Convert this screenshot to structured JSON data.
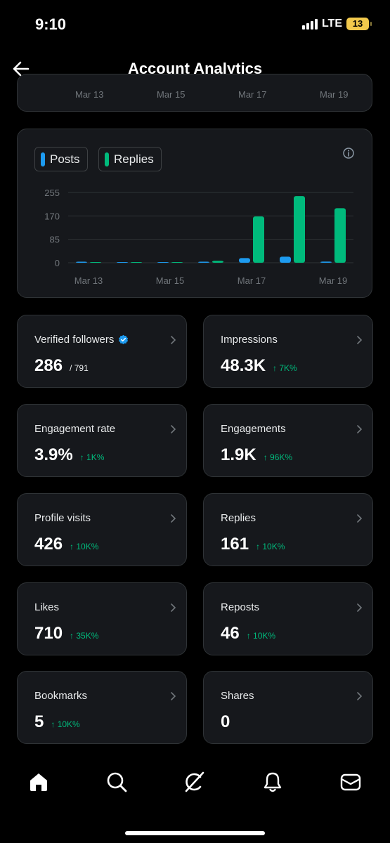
{
  "status_bar": {
    "time": "9:10",
    "network": "LTE",
    "battery": "13"
  },
  "header": {
    "title": "Account Analytics"
  },
  "top_chart": {
    "x_ticks": [
      "Mar 13",
      "Mar 15",
      "Mar 17",
      "Mar 19"
    ]
  },
  "legend": {
    "posts_label": "Posts",
    "replies_label": "Replies"
  },
  "colors": {
    "posts": "#1d9bf0",
    "replies": "#00ba7c",
    "delta_up": "#00ba7c",
    "card_bg": "#16181c",
    "border": "#2f3336"
  },
  "chart_data": {
    "type": "bar",
    "categories": [
      "Mar 13",
      "Mar 14",
      "Mar 15",
      "Mar 16",
      "Mar 17",
      "Mar 18",
      "Mar 19"
    ],
    "x_ticks": [
      "Mar 13",
      "Mar 15",
      "Mar 17",
      "Mar 19"
    ],
    "y_ticks": [
      "255",
      "170",
      "85",
      "0"
    ],
    "ylim": [
      0,
      255
    ],
    "series": [
      {
        "name": "Posts",
        "values": [
          1,
          0,
          0,
          1,
          17,
          22,
          4
        ]
      },
      {
        "name": "Replies",
        "values": [
          0,
          0,
          0,
          7,
          168,
          242,
          198
        ]
      }
    ],
    "grid": true,
    "legend": "top-left"
  },
  "stats": {
    "verified_followers": {
      "label": "Verified followers",
      "value": "286",
      "sub": "/ 791"
    },
    "impressions": {
      "label": "Impressions",
      "value": "48.3K",
      "delta": "↑ 7K%"
    },
    "engagement_rate": {
      "label": "Engagement rate",
      "value": "3.9%",
      "delta": "↑ 1K%"
    },
    "engagements": {
      "label": "Engagements",
      "value": "1.9K",
      "delta": "↑ 96K%"
    },
    "profile_visits": {
      "label": "Profile visits",
      "value": "426",
      "delta": "↑ 10K%"
    },
    "replies": {
      "label": "Replies",
      "value": "161",
      "delta": "↑ 10K%"
    },
    "likes": {
      "label": "Likes",
      "value": "710",
      "delta": "↑ 35K%"
    },
    "reposts": {
      "label": "Reposts",
      "value": "46",
      "delta": "↑ 10K%"
    },
    "bookmarks": {
      "label": "Bookmarks",
      "value": "5",
      "delta": "↑ 10K%"
    },
    "shares": {
      "label": "Shares",
      "value": "0"
    }
  },
  "tab_bar": {
    "items": [
      "home-icon",
      "search-icon",
      "grok-icon",
      "notifications-icon",
      "messages-icon"
    ]
  }
}
